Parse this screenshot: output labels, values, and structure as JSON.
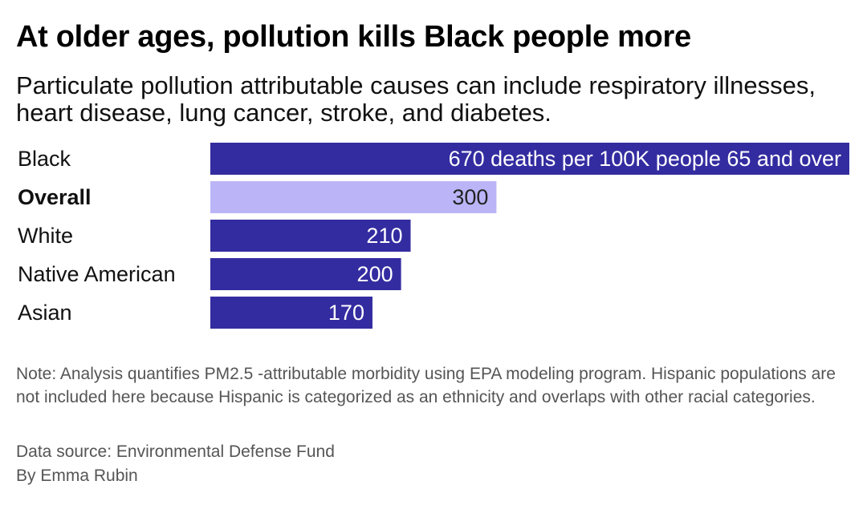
{
  "header": {
    "title": "At older ages, pollution kills Black people more",
    "subtitle": "Particulate pollution attributable causes can include respiratory illnesses, heart disease, lung cancer, stroke, and diabetes."
  },
  "chart_data": {
    "type": "bar",
    "orientation": "horizontal",
    "categories": [
      "Black",
      "Overall",
      "White",
      "Native American",
      "Asian"
    ],
    "values": [
      670,
      300,
      210,
      200,
      170
    ],
    "value_labels": [
      "670 deaths per 100K people 65 and over",
      "300",
      "210",
      "200",
      "170"
    ],
    "highlight_category": "Overall",
    "bold_categories": [
      "Overall"
    ],
    "xlim": [
      0,
      670
    ],
    "grid": false,
    "legend": "none",
    "colors": {
      "bar": "#332ca0",
      "highlight_bar": "#bbb5f7",
      "label_on_bar": "#ffffff",
      "label_on_highlight": "#222222"
    }
  },
  "footer": {
    "note": "Note: Analysis quantifies PM2.5 -attributable morbidity using EPA modeling program. Hispanic populations are not included here because Hispanic is categorized as an ethnicity and overlaps with other racial categories.",
    "source": "Data source: Environmental Defense Fund",
    "byline": "By Emma Rubin"
  }
}
